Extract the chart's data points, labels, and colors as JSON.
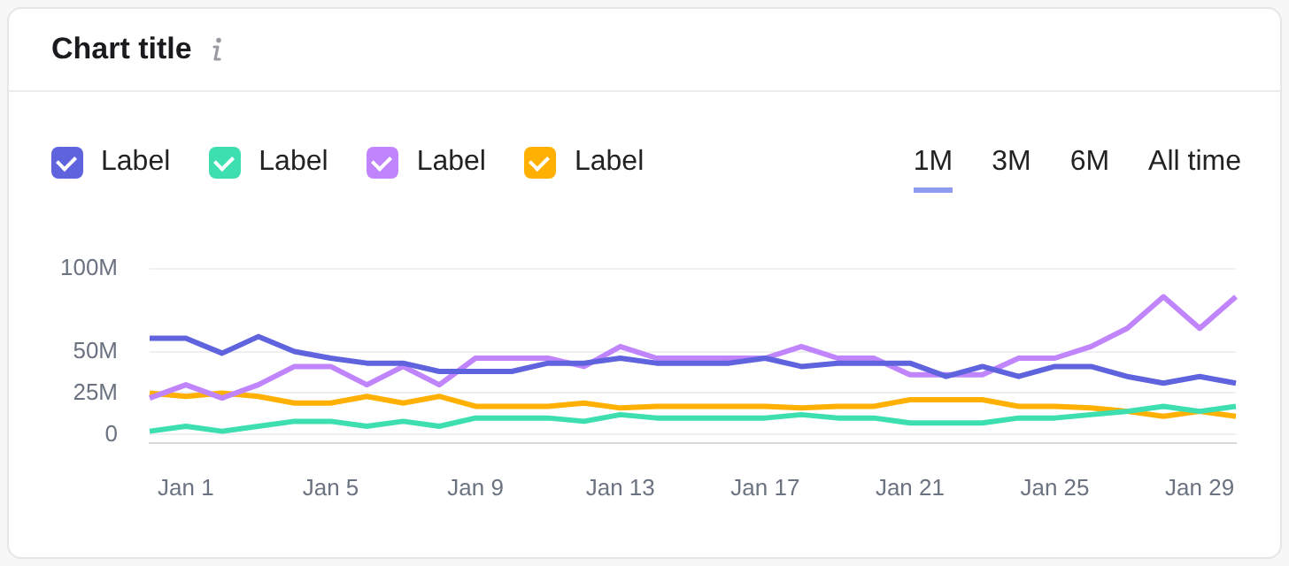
{
  "chart_data": {
    "type": "line",
    "title": "Chart title",
    "categories": [
      null,
      "Jan 1",
      null,
      null,
      null,
      "Jan 5",
      null,
      null,
      null,
      "Jan 9",
      null,
      null,
      null,
      "Jan 13",
      null,
      null,
      null,
      "Jan 17",
      null,
      null,
      null,
      "Jan 21",
      null,
      null,
      null,
      "Jan 25",
      null,
      null,
      null,
      "Jan 29",
      null
    ],
    "series": [
      {
        "name": "Label",
        "color": "#5f63dd",
        "values": [
          58,
          58,
          49,
          59,
          50,
          46,
          43,
          43,
          38,
          38,
          38,
          43,
          43,
          46,
          43,
          43,
          43,
          46,
          41,
          43,
          43,
          43,
          35,
          41,
          35,
          41,
          41,
          35,
          31,
          35,
          31
        ]
      },
      {
        "name": "Label",
        "color": "#3ddfb0",
        "values": [
          2,
          5,
          2,
          5,
          8,
          8,
          5,
          8,
          5,
          10,
          10,
          10,
          8,
          12,
          10,
          10,
          10,
          10,
          12,
          10,
          10,
          7,
          7,
          7,
          10,
          10,
          12,
          14,
          17,
          14,
          17
        ]
      },
      {
        "name": "Label",
        "color": "#c084fc",
        "values": [
          22,
          30,
          22,
          30,
          41,
          41,
          30,
          41,
          30,
          46,
          46,
          46,
          41,
          53,
          46,
          46,
          46,
          46,
          53,
          46,
          46,
          36,
          36,
          36,
          46,
          46,
          53,
          64,
          83,
          64,
          83
        ]
      },
      {
        "name": "Label",
        "color": "#ffb000",
        "values": [
          25,
          23,
          25,
          23,
          19,
          19,
          23,
          19,
          23,
          17,
          17,
          17,
          19,
          16,
          17,
          17,
          17,
          17,
          16,
          17,
          17,
          21,
          21,
          21,
          17,
          17,
          16,
          14,
          11,
          14,
          11
        ]
      }
    ],
    "ylim": [
      -5,
      100
    ],
    "yticks": [
      0,
      {
        "value": 25,
        "label": "25M"
      },
      {
        "value": 50,
        "label": "50M"
      },
      {
        "value": 100,
        "label": "100M"
      }
    ],
    "grid": "y",
    "legend": "top left",
    "marker": "none",
    "line_style": "solid",
    "annotations": [
      "1M",
      "3M",
      "6M",
      "All time"
    ]
  }
}
